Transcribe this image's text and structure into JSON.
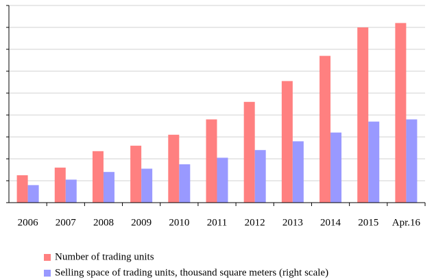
{
  "chart_data": {
    "type": "bar",
    "categories": [
      "2006",
      "2007",
      "2008",
      "2009",
      "2010",
      "2011",
      "2012",
      "2013",
      "2014",
      "2015",
      "Apr.16"
    ],
    "series": [
      {
        "name": "Number of trading units",
        "color": "#ff8080",
        "values": [
          1.25,
          1.6,
          2.35,
          2.6,
          3.1,
          3.8,
          4.6,
          5.55,
          6.7,
          8.0,
          8.2
        ]
      },
      {
        "name": "Selling space of trading units, thousand square meters (right scale)",
        "color": "#9999ff",
        "values": [
          0.8,
          1.05,
          1.4,
          1.55,
          1.75,
          2.05,
          2.4,
          2.8,
          3.2,
          3.7,
          3.8
        ]
      }
    ],
    "ylim": [
      0,
      9
    ],
    "yticks": [
      0,
      1,
      2,
      3,
      4,
      5,
      6,
      7,
      8,
      9
    ],
    "grid": true
  }
}
